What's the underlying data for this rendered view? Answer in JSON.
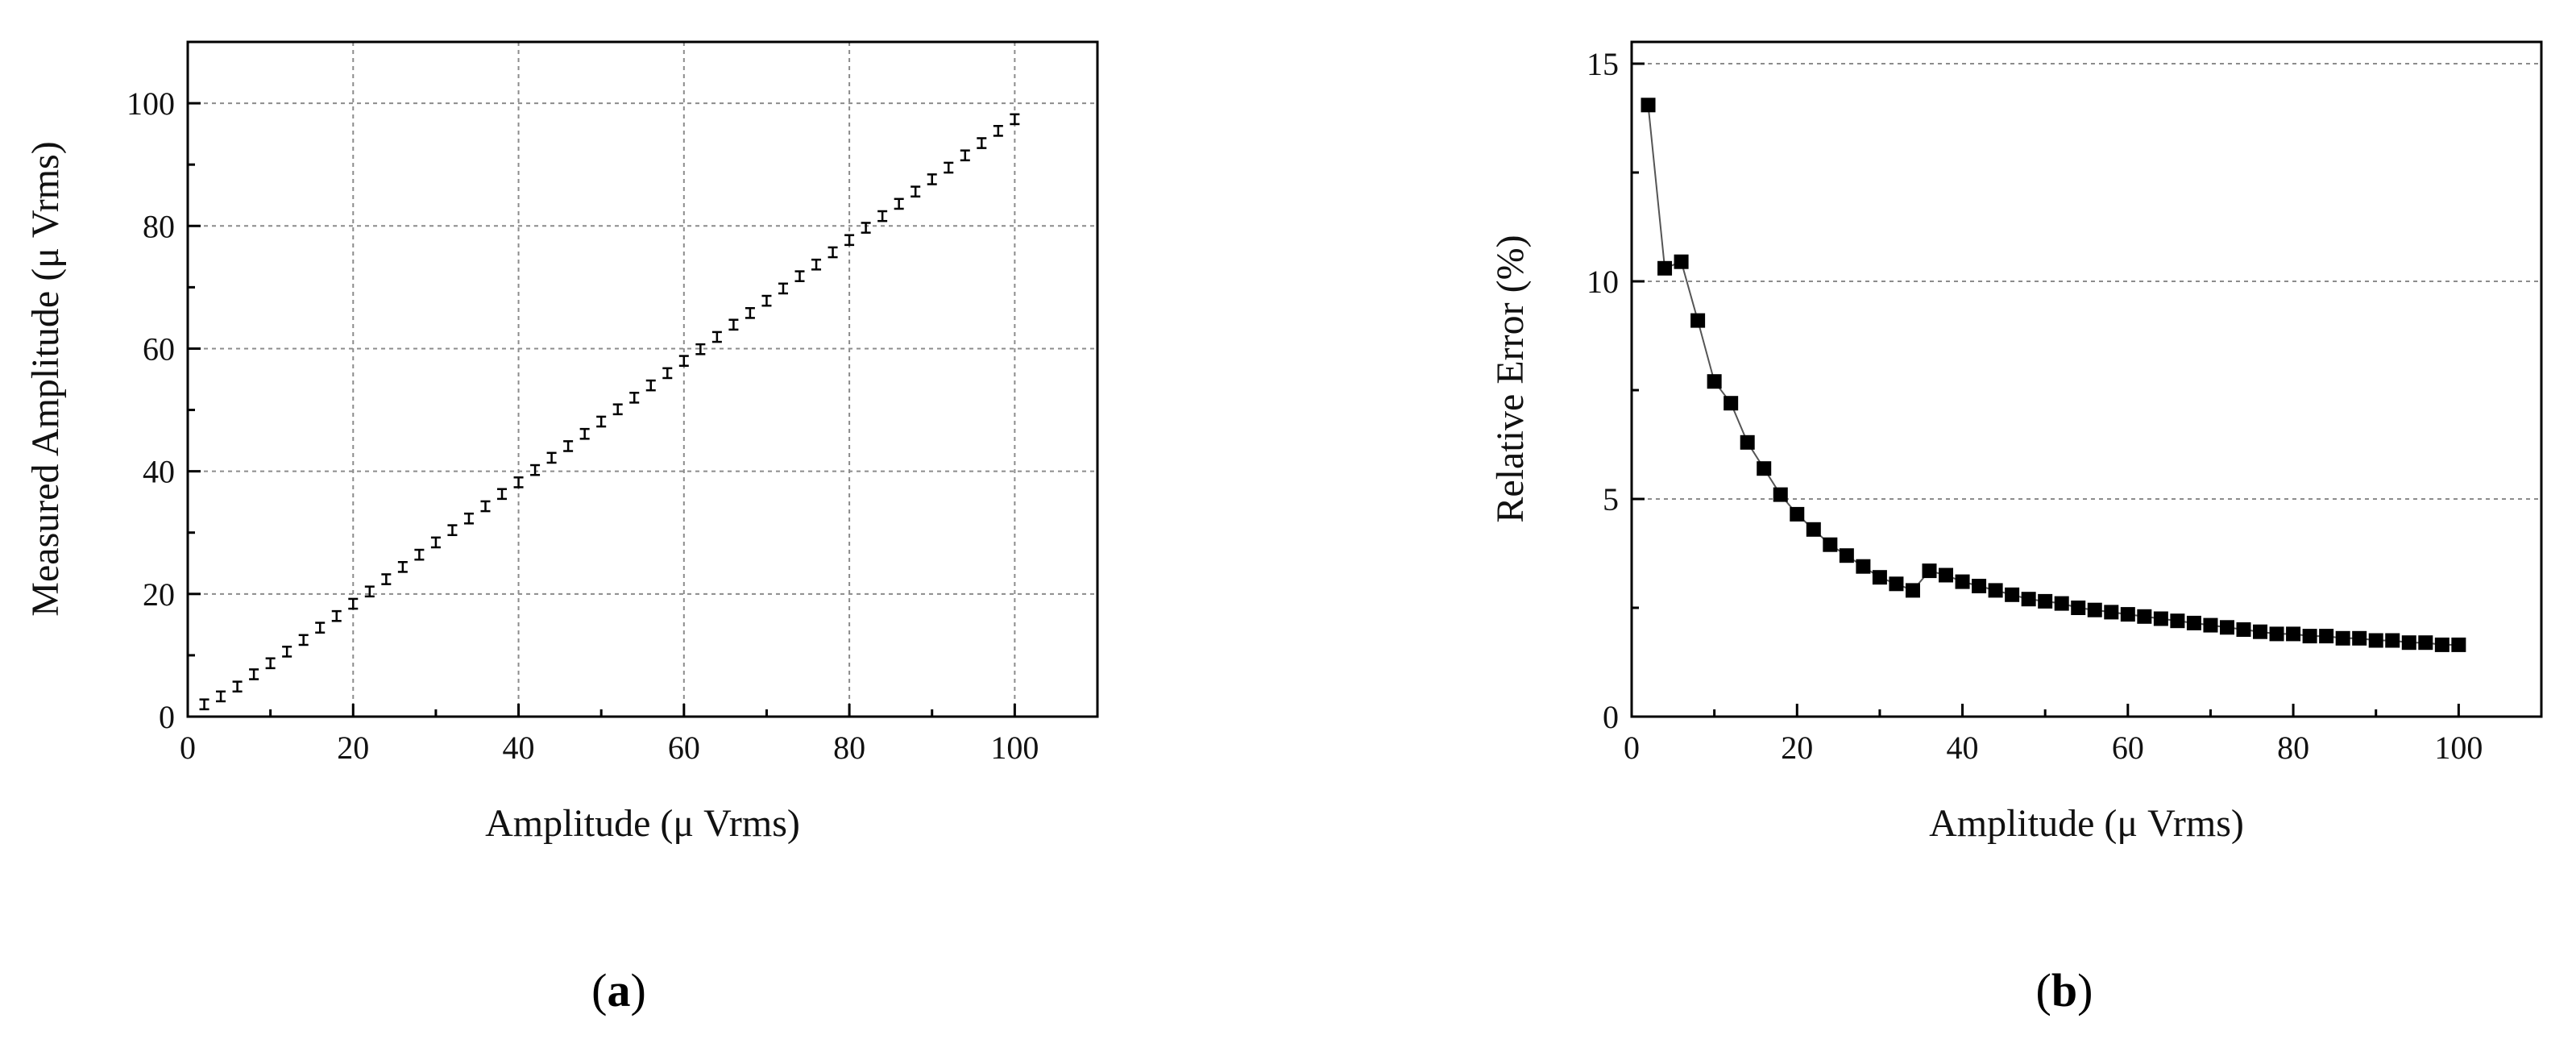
{
  "colors": {
    "axis": "#000000",
    "grid": "#8c8c8c",
    "marker": "#000000",
    "line": "#555555",
    "background": "#ffffff"
  },
  "panels": [
    {
      "letter": "a",
      "open": "(",
      "close": ")"
    },
    {
      "letter": "b",
      "open": "(",
      "close": ")"
    }
  ],
  "chart_data": [
    {
      "id": "a",
      "type": "scatter",
      "marker": "errorbar",
      "title": "",
      "xlabel": "Amplitude (μ Vrms)",
      "ylabel": "Measured Amplitude (μ Vrms)",
      "xlim": [
        0,
        110
      ],
      "ylim": [
        0,
        110
      ],
      "xticks": [
        0,
        20,
        40,
        60,
        80,
        100
      ],
      "yticks": [
        0,
        20,
        40,
        60,
        80,
        100
      ],
      "xtick_labels": [
        "0",
        "20",
        "40",
        "60",
        "80",
        "100"
      ],
      "ytick_labels": [
        "0",
        "20",
        "40",
        "60",
        "80",
        "100"
      ],
      "grid": true,
      "x": [
        2,
        4,
        6,
        8,
        10,
        12,
        14,
        16,
        18,
        20,
        22,
        24,
        26,
        28,
        30,
        32,
        34,
        36,
        38,
        40,
        42,
        44,
        46,
        48,
        50,
        52,
        54,
        56,
        58,
        60,
        62,
        64,
        66,
        68,
        70,
        72,
        74,
        76,
        78,
        80,
        82,
        84,
        86,
        88,
        90,
        92,
        94,
        96,
        98,
        100
      ],
      "y": [
        2.0,
        3.3,
        4.9,
        6.9,
        8.7,
        10.6,
        12.5,
        14.5,
        16.4,
        18.4,
        20.4,
        22.4,
        24.4,
        26.4,
        28.4,
        30.4,
        32.3,
        34.3,
        36.3,
        38.2,
        40.2,
        42.2,
        44.1,
        46.1,
        48.1,
        50.1,
        52.0,
        54.0,
        56.0,
        58.0,
        59.9,
        61.9,
        63.9,
        65.8,
        67.8,
        69.8,
        71.8,
        73.7,
        75.7,
        77.7,
        79.7,
        81.6,
        83.6,
        85.6,
        87.6,
        89.5,
        91.5,
        93.5,
        95.5,
        97.4
      ],
      "error": 0.8
    },
    {
      "id": "b",
      "type": "line",
      "marker": "square",
      "title": "",
      "xlabel": "Amplitude (μ Vrms)",
      "ylabel": "Relative Error (%)",
      "xlim": [
        0,
        110
      ],
      "ylim": [
        0,
        15.5
      ],
      "xticks": [
        0,
        20,
        40,
        60,
        80,
        100
      ],
      "yticks": [
        0,
        5,
        10,
        15
      ],
      "xtick_labels": [
        "0",
        "20",
        "40",
        "60",
        "80",
        "100"
      ],
      "ytick_labels": [
        "0",
        "5",
        "10",
        "15"
      ],
      "grid": "horizontal",
      "x": [
        2,
        4,
        6,
        8,
        10,
        12,
        14,
        16,
        18,
        20,
        22,
        24,
        26,
        28,
        30,
        32,
        34,
        36,
        38,
        40,
        42,
        44,
        46,
        48,
        50,
        52,
        54,
        56,
        58,
        60,
        62,
        64,
        66,
        68,
        70,
        72,
        74,
        76,
        78,
        80,
        82,
        84,
        86,
        88,
        90,
        92,
        94,
        96,
        98,
        100
      ],
      "y": [
        14.05,
        10.3,
        10.45,
        9.1,
        7.7,
        7.2,
        6.3,
        5.7,
        5.1,
        4.65,
        4.3,
        3.95,
        3.7,
        3.45,
        3.2,
        3.05,
        2.9,
        3.35,
        3.25,
        3.1,
        3.0,
        2.9,
        2.8,
        2.7,
        2.65,
        2.6,
        2.5,
        2.45,
        2.4,
        2.35,
        2.3,
        2.25,
        2.2,
        2.15,
        2.1,
        2.05,
        2.0,
        1.95,
        1.9,
        1.9,
        1.85,
        1.85,
        1.8,
        1.8,
        1.75,
        1.75,
        1.7,
        1.7,
        1.65,
        1.65
      ]
    }
  ]
}
